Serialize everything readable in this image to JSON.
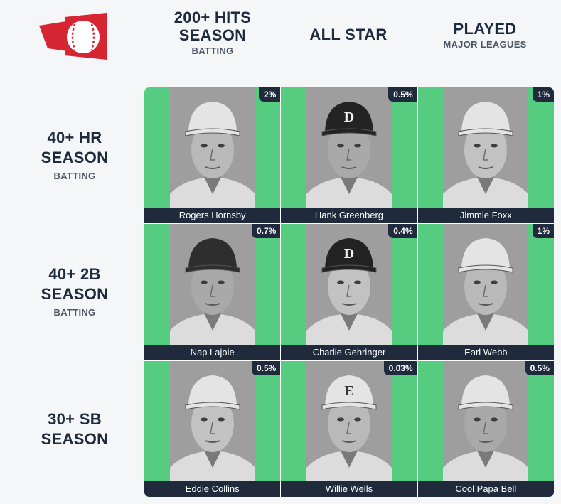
{
  "logo": {
    "icon": "baseball-flag-logo",
    "color": "#d62533"
  },
  "columns": [
    {
      "title_line1": "200+ HITS",
      "title_line2": "SEASON",
      "sub": "BATTING"
    },
    {
      "title_line1": "ALL STAR",
      "title_line2": "",
      "sub": ""
    },
    {
      "title_line1": "PLAYED",
      "title_line2": "",
      "sub": "MAJOR LEAGUES"
    }
  ],
  "rows": [
    {
      "title_line1": "40+ HR",
      "title_line2": "SEASON",
      "sub": "BATTING"
    },
    {
      "title_line1": "40+ 2B",
      "title_line2": "SEASON",
      "sub": "BATTING"
    },
    {
      "title_line1": "30+ SB",
      "title_line2": "SEASON",
      "sub": ""
    }
  ],
  "cells": [
    [
      {
        "name": "Rogers Hornsby",
        "pct": "2%",
        "cap": "plain"
      },
      {
        "name": "Hank Greenberg",
        "pct": "0.5%",
        "cap": "dark-d"
      },
      {
        "name": "Jimmie Foxx",
        "pct": "1%",
        "cap": "plain"
      }
    ],
    [
      {
        "name": "Nap Lajoie",
        "pct": "0.7%",
        "cap": "dark"
      },
      {
        "name": "Charlie Gehringer",
        "pct": "0.4%",
        "cap": "dark-d"
      },
      {
        "name": "Earl Webb",
        "pct": "1%",
        "cap": "plain"
      }
    ],
    [
      {
        "name": "Eddie Collins",
        "pct": "0.5%",
        "cap": "plain"
      },
      {
        "name": "Willie Wells",
        "pct": "0.03%",
        "cap": "plain-e"
      },
      {
        "name": "Cool Papa Bell",
        "pct": "0.5%",
        "cap": "plain"
      }
    ]
  ],
  "colors": {
    "cell_green": "#55cc7f",
    "navy": "#1f2a3c",
    "background": "#f5f6f8"
  }
}
